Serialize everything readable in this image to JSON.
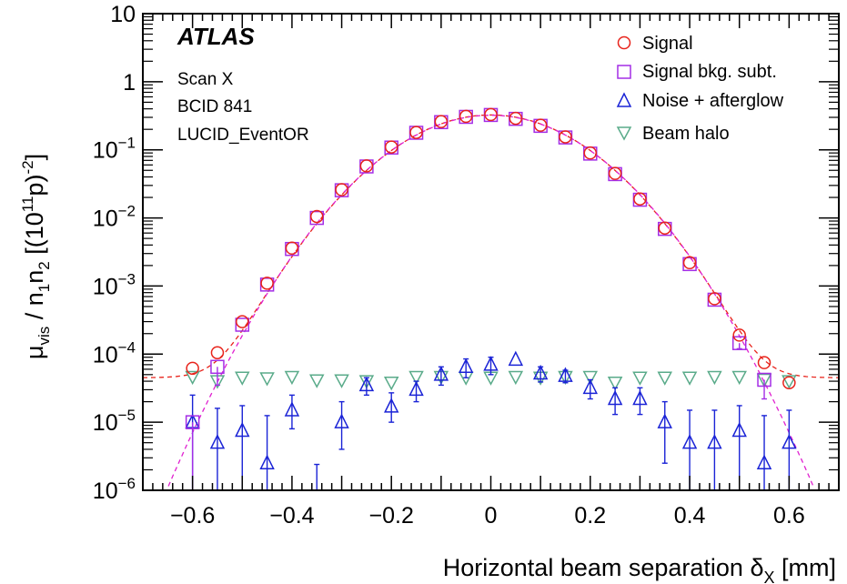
{
  "chart_data": {
    "type": "scatter",
    "xlabel": "Horizontal beam separation δ_X [mm]",
    "xlabel_parts": {
      "main": "Horizontal beam separation δ",
      "sub": "X",
      "unit": " [mm]"
    },
    "ylabel": "μ_vis / n_1n_2 [(10^11 p)^-2]",
    "y_scale": "log",
    "xlim": [
      -0.7,
      0.7
    ],
    "ylim": [
      1e-06,
      10
    ],
    "x_ticks": [
      {
        "v": -0.6,
        "label": "−0.6"
      },
      {
        "v": -0.4,
        "label": "−0.4"
      },
      {
        "v": -0.2,
        "label": "−0.2"
      },
      {
        "v": 0,
        "label": "0"
      },
      {
        "v": 0.2,
        "label": "0.2"
      },
      {
        "v": 0.4,
        "label": "0.4"
      },
      {
        "v": 0.6,
        "label": "0.6"
      }
    ],
    "y_ticks": [
      {
        "v": 10,
        "label": "10"
      },
      {
        "v": 1,
        "label": "1"
      },
      {
        "v": 0.1,
        "base": "10",
        "exp": "−1"
      },
      {
        "v": 0.01,
        "base": "10",
        "exp": "−2"
      },
      {
        "v": 0.001,
        "base": "10",
        "exp": "−3"
      },
      {
        "v": 0.0001,
        "base": "10",
        "exp": "−4"
      },
      {
        "v": 1e-05,
        "base": "10",
        "exp": "−5"
      },
      {
        "v": 1e-06,
        "base": "10",
        "exp": "−6"
      }
    ],
    "grid": false,
    "legend_position": "top-right",
    "legend": [
      "Signal",
      "Signal bkg. subt.",
      "Noise + afterglow",
      "Beam halo"
    ],
    "annotations": [
      "ATLAS",
      "Scan X",
      "BCID 841",
      "LUCID_EventOR"
    ],
    "colors": {
      "signal": "#e8231b",
      "bkg_subt": "#a42de6",
      "noise": "#1a23d6",
      "halo": "#5aab8a",
      "fit_signal": "#e8231b",
      "fit_bkg_subt": "#e020d0"
    },
    "series": [
      {
        "name": "Signal",
        "marker": "circle",
        "x": [
          -0.6,
          -0.55,
          -0.5,
          -0.45,
          -0.4,
          -0.35,
          -0.3,
          -0.25,
          -0.2,
          -0.15,
          -0.1,
          -0.05,
          0,
          0.05,
          0.1,
          0.15,
          0.2,
          0.25,
          0.3,
          0.35,
          0.4,
          0.45,
          0.5,
          0.55,
          0.6
        ],
        "y": [
          6.2e-05,
          0.000105,
          0.0003,
          0.0011,
          0.0036,
          0.0105,
          0.026,
          0.058,
          0.11,
          0.18,
          0.26,
          0.31,
          0.33,
          0.29,
          0.23,
          0.155,
          0.09,
          0.045,
          0.019,
          0.0071,
          0.0022,
          0.00065,
          0.00019,
          7.5e-05,
          3.8e-05
        ]
      },
      {
        "name": "Signal bkg. subt.",
        "marker": "square",
        "x": [
          -0.6,
          -0.55,
          -0.5,
          -0.45,
          -0.4,
          -0.35,
          -0.3,
          -0.25,
          -0.2,
          -0.15,
          -0.1,
          -0.05,
          0,
          0.05,
          0.1,
          0.15,
          0.2,
          0.25,
          0.3,
          0.35,
          0.4,
          0.45,
          0.5,
          0.55
        ],
        "y": [
          1e-05,
          6.5e-05,
          0.00027,
          0.00105,
          0.0035,
          0.01,
          0.0255,
          0.057,
          0.108,
          0.178,
          0.255,
          0.305,
          0.325,
          0.285,
          0.225,
          0.152,
          0.088,
          0.044,
          0.0185,
          0.0069,
          0.0021,
          0.00063,
          0.000145,
          4.2e-05
        ],
        "err_low": [
          1e-05,
          3e-05,
          0,
          0,
          0,
          0,
          0,
          0,
          0,
          0,
          0,
          0,
          0,
          0,
          0,
          0,
          0,
          0,
          0,
          0,
          0,
          0,
          2.5e-05,
          2e-05
        ]
      },
      {
        "name": "Noise + afterglow",
        "marker": "triangle-up",
        "x": [
          -0.6,
          -0.55,
          -0.5,
          -0.45,
          -0.4,
          -0.35,
          -0.3,
          -0.25,
          -0.2,
          -0.15,
          -0.1,
          -0.05,
          0,
          0.05,
          0.1,
          0.15,
          0.2,
          0.25,
          0.3,
          0.35,
          0.4,
          0.45,
          0.5,
          0.55,
          0.6
        ],
        "y": [
          1e-05,
          5e-06,
          7.5e-06,
          2.5e-06,
          1.5e-05,
          null,
          1e-05,
          3.5e-05,
          1.7e-05,
          3e-05,
          5e-05,
          6.5e-05,
          7e-05,
          8.3e-05,
          5.2e-05,
          4.8e-05,
          3.2e-05,
          2.2e-05,
          2.2e-05,
          1e-05,
          5e-06,
          5e-06,
          7.5e-06,
          2.5e-06,
          5e-06
        ],
        "err_low": [
          1e-05,
          5e-06,
          7.5e-06,
          2.5e-06,
          7e-06,
          1e-06,
          6e-06,
          1e-05,
          7e-06,
          1e-05,
          1.5e-05,
          2e-05,
          2e-05,
          0,
          1.3e-05,
          1e-05,
          1e-05,
          9e-06,
          9e-06,
          7.5e-06,
          5e-06,
          5e-06,
          7.5e-06,
          2.5e-06,
          5e-06
        ],
        "err_high": [
          1.5e-05,
          1.1e-05,
          1e-05,
          1e-05,
          1e-05,
          2.4e-06,
          1e-05,
          1e-05,
          1e-05,
          1e-05,
          1.5e-05,
          2e-05,
          2e-05,
          0,
          1.3e-05,
          1e-05,
          1e-05,
          1e-05,
          1e-05,
          1e-05,
          1e-05,
          1e-05,
          1e-05,
          1e-05,
          1e-05
        ]
      },
      {
        "name": "Beam halo",
        "marker": "triangle-down",
        "x": [
          -0.6,
          -0.55,
          -0.5,
          -0.45,
          -0.4,
          -0.35,
          -0.3,
          -0.25,
          -0.2,
          -0.15,
          -0.1,
          -0.05,
          0,
          0.05,
          0.1,
          0.15,
          0.2,
          0.25,
          0.3,
          0.35,
          0.4,
          0.45,
          0.5,
          0.55,
          0.6
        ],
        "y": [
          4.6e-05,
          4e-05,
          4.5e-05,
          4.4e-05,
          4.6e-05,
          4.1e-05,
          4.1e-05,
          4e-05,
          3.8e-05,
          4.6e-05,
          4.6e-05,
          4.5e-05,
          4.5e-05,
          4.6e-05,
          4.5e-05,
          4.6e-05,
          4.6e-05,
          3.8e-05,
          4.5e-05,
          4.5e-05,
          4.5e-05,
          4.6e-05,
          4.6e-05,
          4.2e-05,
          4e-05
        ]
      }
    ],
    "fits": [
      {
        "series": "Signal",
        "style": "dashed",
        "model": "gaussian+constant",
        "amplitude": 0.325,
        "sigma": 0.129,
        "constant": 4.5e-05
      },
      {
        "series": "Signal bkg. subt.",
        "style": "dashed",
        "model": "gaussian",
        "amplitude": 0.322,
        "sigma": 0.1295
      }
    ]
  }
}
